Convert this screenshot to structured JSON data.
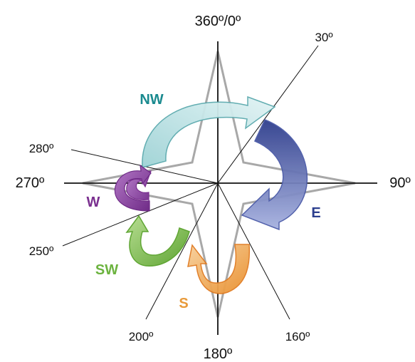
{
  "degrees": {
    "north": "360º/0º",
    "d30": "30º",
    "east": "90º",
    "d160": "160º",
    "south": "180º",
    "d200": "200º",
    "d250": "250º",
    "west": "270º",
    "d280": "280º"
  },
  "directions": [
    {
      "label": "NW",
      "color": "#1a8a8f"
    },
    {
      "label": "E",
      "color": "#2c3f8f"
    },
    {
      "label": "W",
      "color": "#7a2f8f"
    },
    {
      "label": "SW",
      "color": "#6cb33f"
    },
    {
      "label": "S",
      "color": "#e89a3a"
    }
  ]
}
